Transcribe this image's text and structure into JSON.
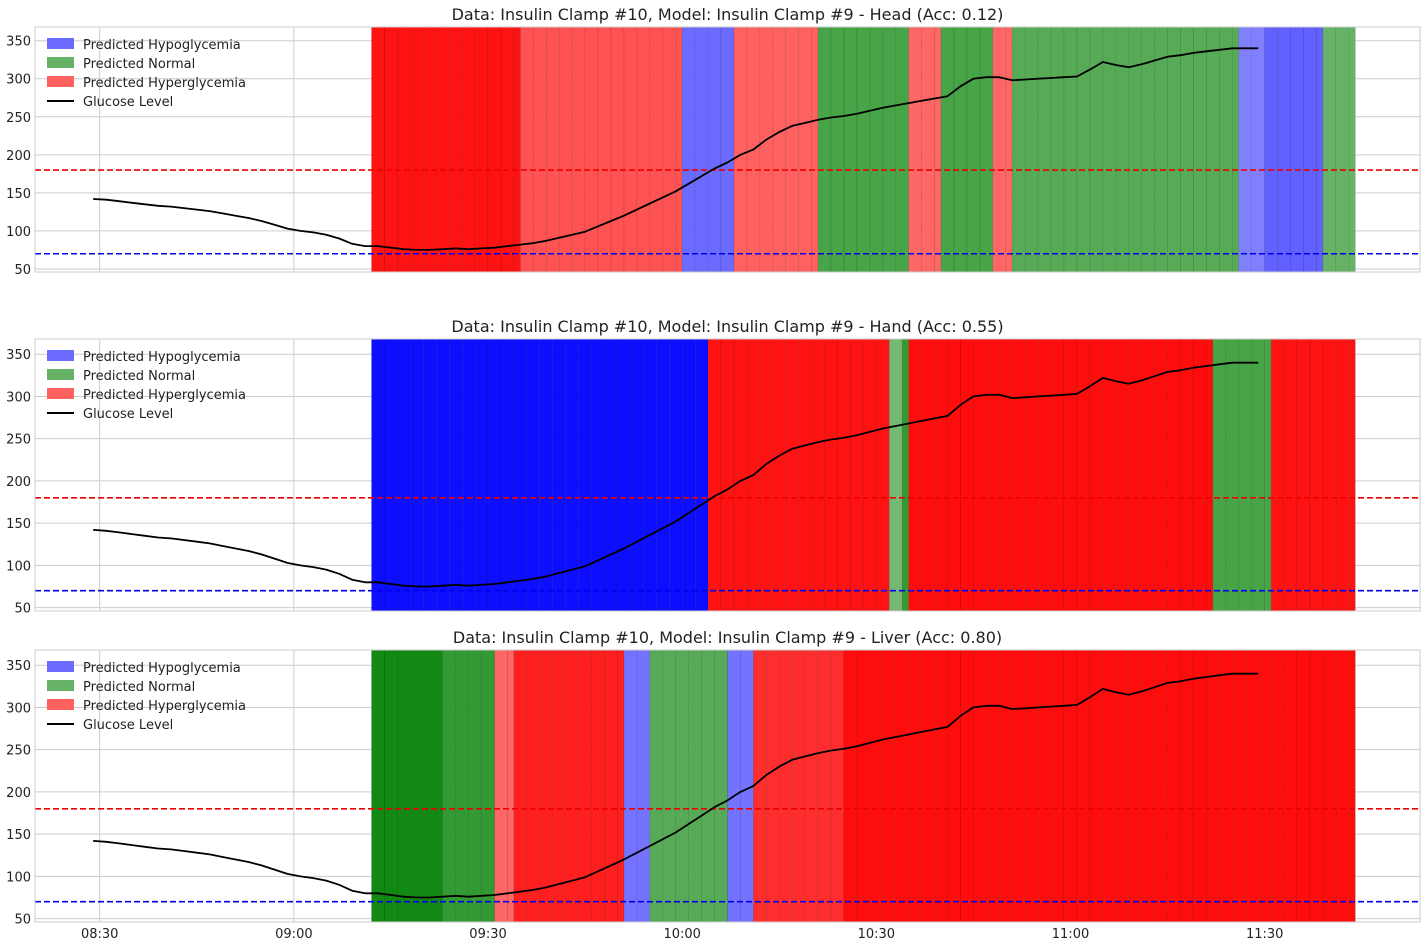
{
  "figure": {
    "time_ticks": [
      "08:30",
      "09:00",
      "09:30",
      "10:00",
      "10:30",
      "11:00",
      "11:30"
    ],
    "threshold_lines": [
      {
        "value": 180,
        "color": "#ee0000",
        "style": "dashed"
      },
      {
        "value": 70,
        "color": "#0000ee",
        "style": "dashed"
      }
    ],
    "colors": {
      "hypo": "#0000ff",
      "normal": "#008000",
      "hyper": "#ff0000",
      "glucose_line": "#000000",
      "grid": "#cccccc",
      "axes_edge": "#cccccc"
    }
  },
  "chart_data": [
    {
      "type": "line",
      "title": "Data: Insulin Clamp #10, Model: Insulin Clamp #9 - Head (Acc: 0.12)",
      "xlabel": "",
      "ylabel": "",
      "ylim": [
        46,
        368
      ],
      "xlim": [
        "08:20",
        "11:54"
      ],
      "yticks": [
        50,
        100,
        150,
        200,
        250,
        300,
        350
      ],
      "grid": true,
      "legend_placement": "top-left",
      "legend": [
        {
          "label": "Predicted Hypoglycemia",
          "kind": "patch",
          "color": "#6b6bff"
        },
        {
          "label": "Predicted Normal",
          "kind": "patch",
          "color": "#66b266"
        },
        {
          "label": "Predicted Hyperglycemia",
          "kind": "patch",
          "color": "#ff6161"
        },
        {
          "label": "Glucose Level",
          "kind": "line",
          "color": "#000000"
        }
      ],
      "prediction_bands": [
        {
          "start": "09:12",
          "end": "09:35",
          "class": "hyper",
          "shade": 0.93
        },
        {
          "start": "09:35",
          "end": "10:00",
          "class": "hyper",
          "shade": 0.68
        },
        {
          "start": "10:00",
          "end": "10:08",
          "class": "hypo",
          "shade": 0.58
        },
        {
          "start": "10:08",
          "end": "10:21",
          "class": "hyper",
          "shade": 0.62
        },
        {
          "start": "10:21",
          "end": "10:35",
          "class": "normal",
          "shade": 0.72
        },
        {
          "start": "10:35",
          "end": "10:40",
          "class": "hyper",
          "shade": 0.6
        },
        {
          "start": "10:40",
          "end": "10:48",
          "class": "normal",
          "shade": 0.72
        },
        {
          "start": "10:48",
          "end": "10:51",
          "class": "hyper",
          "shade": 0.6
        },
        {
          "start": "10:51",
          "end": "11:26",
          "class": "normal",
          "shade": 0.66
        },
        {
          "start": "11:26",
          "end": "11:30",
          "class": "hypo",
          "shade": 0.5
        },
        {
          "start": "11:30",
          "end": "11:39",
          "class": "hypo",
          "shade": 0.62
        },
        {
          "start": "11:39",
          "end": "11:44",
          "class": "normal",
          "shade": 0.6
        }
      ],
      "series": [
        {
          "name": "Glucose Level",
          "x": [
            "08:29",
            "08:31",
            "08:33",
            "08:35",
            "08:37",
            "08:39",
            "08:41",
            "08:43",
            "08:45",
            "08:47",
            "08:49",
            "08:51",
            "08:53",
            "08:55",
            "08:57",
            "08:59",
            "09:01",
            "09:03",
            "09:05",
            "09:07",
            "09:09",
            "09:11",
            "09:13",
            "09:15",
            "09:17",
            "09:19",
            "09:21",
            "09:23",
            "09:25",
            "09:27",
            "09:29",
            "09:31",
            "09:33",
            "09:35",
            "09:37",
            "09:39",
            "09:41",
            "09:43",
            "09:45",
            "09:47",
            "09:49",
            "09:51",
            "09:53",
            "09:55",
            "09:57",
            "09:59",
            "10:01",
            "10:03",
            "10:05",
            "10:07",
            "10:09",
            "10:11",
            "10:13",
            "10:15",
            "10:17",
            "10:19",
            "10:21",
            "10:23",
            "10:25",
            "10:27",
            "10:29",
            "10:31",
            "10:33",
            "10:35",
            "10:37",
            "10:39",
            "10:41",
            "10:43",
            "10:45",
            "10:47",
            "10:49",
            "10:51",
            "10:53",
            "10:55",
            "10:57",
            "10:59",
            "11:01",
            "11:03",
            "11:05",
            "11:07",
            "11:09",
            "11:11",
            "11:13",
            "11:15",
            "11:17",
            "11:19",
            "11:21",
            "11:23",
            "11:25",
            "11:27",
            "11:29"
          ],
          "values": [
            142,
            141,
            139,
            137,
            135,
            133,
            132,
            130,
            128,
            126,
            123,
            120,
            117,
            113,
            108,
            103,
            100,
            98,
            95,
            90,
            83,
            80,
            80,
            78,
            76,
            75,
            75,
            76,
            77,
            76,
            77,
            78,
            80,
            82,
            84,
            87,
            91,
            95,
            99,
            106,
            113,
            120,
            128,
            136,
            144,
            152,
            162,
            172,
            182,
            190,
            200,
            207,
            220,
            230,
            238,
            242,
            246,
            249,
            251,
            254,
            258,
            262,
            265,
            268,
            271,
            274,
            277,
            290,
            300,
            302,
            302,
            298,
            299,
            300,
            301,
            302,
            303,
            312,
            322,
            318,
            315,
            319,
            324,
            329,
            331,
            334,
            336,
            338,
            340,
            340,
            340
          ]
        }
      ]
    },
    {
      "type": "line",
      "title": "Data: Insulin Clamp #10, Model: Insulin Clamp #9 - Hand (Acc: 0.55)",
      "xlabel": "",
      "ylabel": "",
      "ylim": [
        46,
        368
      ],
      "xlim": [
        "08:20",
        "11:54"
      ],
      "yticks": [
        50,
        100,
        150,
        200,
        250,
        300,
        350
      ],
      "grid": true,
      "legend_placement": "top-left",
      "legend": [
        {
          "label": "Predicted Hypoglycemia",
          "kind": "patch",
          "color": "#6b6bff"
        },
        {
          "label": "Predicted Normal",
          "kind": "patch",
          "color": "#66b266"
        },
        {
          "label": "Predicted Hyperglycemia",
          "kind": "patch",
          "color": "#ff6161"
        },
        {
          "label": "Glucose Level",
          "kind": "line",
          "color": "#000000"
        }
      ],
      "prediction_bands": [
        {
          "start": "09:12",
          "end": "10:04",
          "class": "hypo",
          "shade": 0.95
        },
        {
          "start": "10:04",
          "end": "10:32",
          "class": "hyper",
          "shade": 0.93
        },
        {
          "start": "10:32",
          "end": "10:34",
          "class": "normal",
          "shade": 0.55
        },
        {
          "start": "10:34",
          "end": "10:35",
          "class": "normal",
          "shade": 0.8
        },
        {
          "start": "10:35",
          "end": "11:22",
          "class": "hyper",
          "shade": 0.95
        },
        {
          "start": "11:22",
          "end": "11:31",
          "class": "normal",
          "shade": 0.72
        },
        {
          "start": "11:31",
          "end": "11:44",
          "class": "hyper",
          "shade": 0.93
        }
      ],
      "series": [
        {
          "name": "Glucose Level",
          "x": [
            "08:29",
            "08:31",
            "08:33",
            "08:35",
            "08:37",
            "08:39",
            "08:41",
            "08:43",
            "08:45",
            "08:47",
            "08:49",
            "08:51",
            "08:53",
            "08:55",
            "08:57",
            "08:59",
            "09:01",
            "09:03",
            "09:05",
            "09:07",
            "09:09",
            "09:11",
            "09:13",
            "09:15",
            "09:17",
            "09:19",
            "09:21",
            "09:23",
            "09:25",
            "09:27",
            "09:29",
            "09:31",
            "09:33",
            "09:35",
            "09:37",
            "09:39",
            "09:41",
            "09:43",
            "09:45",
            "09:47",
            "09:49",
            "09:51",
            "09:53",
            "09:55",
            "09:57",
            "09:59",
            "10:01",
            "10:03",
            "10:05",
            "10:07",
            "10:09",
            "10:11",
            "10:13",
            "10:15",
            "10:17",
            "10:19",
            "10:21",
            "10:23",
            "10:25",
            "10:27",
            "10:29",
            "10:31",
            "10:33",
            "10:35",
            "10:37",
            "10:39",
            "10:41",
            "10:43",
            "10:45",
            "10:47",
            "10:49",
            "10:51",
            "10:53",
            "10:55",
            "10:57",
            "10:59",
            "11:01",
            "11:03",
            "11:05",
            "11:07",
            "11:09",
            "11:11",
            "11:13",
            "11:15",
            "11:17",
            "11:19",
            "11:21",
            "11:23",
            "11:25",
            "11:27",
            "11:29"
          ],
          "values": [
            142,
            141,
            139,
            137,
            135,
            133,
            132,
            130,
            128,
            126,
            123,
            120,
            117,
            113,
            108,
            103,
            100,
            98,
            95,
            90,
            83,
            80,
            80,
            78,
            76,
            75,
            75,
            76,
            77,
            76,
            77,
            78,
            80,
            82,
            84,
            87,
            91,
            95,
            99,
            106,
            113,
            120,
            128,
            136,
            144,
            152,
            162,
            172,
            182,
            190,
            200,
            207,
            220,
            230,
            238,
            242,
            246,
            249,
            251,
            254,
            258,
            262,
            265,
            268,
            271,
            274,
            277,
            290,
            300,
            302,
            302,
            298,
            299,
            300,
            301,
            302,
            303,
            312,
            322,
            318,
            315,
            319,
            324,
            329,
            331,
            334,
            336,
            338,
            340,
            340,
            340
          ]
        }
      ]
    },
    {
      "type": "line",
      "title": "Data: Insulin Clamp #10, Model: Insulin Clamp #9 - Liver (Acc: 0.80)",
      "xlabel": "",
      "ylabel": "",
      "ylim": [
        46,
        368
      ],
      "xlim": [
        "08:20",
        "11:54"
      ],
      "yticks": [
        50,
        100,
        150,
        200,
        250,
        300,
        350
      ],
      "grid": true,
      "legend_placement": "top-left",
      "legend": [
        {
          "label": "Predicted Hypoglycemia",
          "kind": "patch",
          "color": "#6b6bff"
        },
        {
          "label": "Predicted Normal",
          "kind": "patch",
          "color": "#66b266"
        },
        {
          "label": "Predicted Hyperglycemia",
          "kind": "patch",
          "color": "#ff6161"
        },
        {
          "label": "Glucose Level",
          "kind": "line",
          "color": "#000000"
        }
      ],
      "prediction_bands": [
        {
          "start": "09:12",
          "end": "09:23",
          "class": "normal",
          "shade": 0.93
        },
        {
          "start": "09:23",
          "end": "09:31",
          "class": "normal",
          "shade": 0.8
        },
        {
          "start": "09:31",
          "end": "09:34",
          "class": "hyper",
          "shade": 0.6
        },
        {
          "start": "09:34",
          "end": "09:51",
          "class": "hyper",
          "shade": 0.88
        },
        {
          "start": "09:51",
          "end": "09:55",
          "class": "hypo",
          "shade": 0.55
        },
        {
          "start": "09:55",
          "end": "10:07",
          "class": "normal",
          "shade": 0.66
        },
        {
          "start": "10:07",
          "end": "10:11",
          "class": "hypo",
          "shade": 0.55
        },
        {
          "start": "10:11",
          "end": "10:25",
          "class": "hyper",
          "shade": 0.82
        },
        {
          "start": "10:25",
          "end": "11:44",
          "class": "hyper",
          "shade": 0.95
        }
      ],
      "series": [
        {
          "name": "Glucose Level",
          "x": [
            "08:29",
            "08:31",
            "08:33",
            "08:35",
            "08:37",
            "08:39",
            "08:41",
            "08:43",
            "08:45",
            "08:47",
            "08:49",
            "08:51",
            "08:53",
            "08:55",
            "08:57",
            "08:59",
            "09:01",
            "09:03",
            "09:05",
            "09:07",
            "09:09",
            "09:11",
            "09:13",
            "09:15",
            "09:17",
            "09:19",
            "09:21",
            "09:23",
            "09:25",
            "09:27",
            "09:29",
            "09:31",
            "09:33",
            "09:35",
            "09:37",
            "09:39",
            "09:41",
            "09:43",
            "09:45",
            "09:47",
            "09:49",
            "09:51",
            "09:53",
            "09:55",
            "09:57",
            "09:59",
            "10:01",
            "10:03",
            "10:05",
            "10:07",
            "10:09",
            "10:11",
            "10:13",
            "10:15",
            "10:17",
            "10:19",
            "10:21",
            "10:23",
            "10:25",
            "10:27",
            "10:29",
            "10:31",
            "10:33",
            "10:35",
            "10:37",
            "10:39",
            "10:41",
            "10:43",
            "10:45",
            "10:47",
            "10:49",
            "10:51",
            "10:53",
            "10:55",
            "10:57",
            "10:59",
            "11:01",
            "11:03",
            "11:05",
            "11:07",
            "11:09",
            "11:11",
            "11:13",
            "11:15",
            "11:17",
            "11:19",
            "11:21",
            "11:23",
            "11:25",
            "11:27",
            "11:29"
          ],
          "values": [
            142,
            141,
            139,
            137,
            135,
            133,
            132,
            130,
            128,
            126,
            123,
            120,
            117,
            113,
            108,
            103,
            100,
            98,
            95,
            90,
            83,
            80,
            80,
            78,
            76,
            75,
            75,
            76,
            77,
            76,
            77,
            78,
            80,
            82,
            84,
            87,
            91,
            95,
            99,
            106,
            113,
            120,
            128,
            136,
            144,
            152,
            162,
            172,
            182,
            190,
            200,
            207,
            220,
            230,
            238,
            242,
            246,
            249,
            251,
            254,
            258,
            262,
            265,
            268,
            271,
            274,
            277,
            290,
            300,
            302,
            302,
            298,
            299,
            300,
            301,
            302,
            303,
            312,
            322,
            318,
            315,
            319,
            324,
            329,
            331,
            334,
            336,
            338,
            340,
            340,
            340
          ]
        }
      ]
    }
  ]
}
